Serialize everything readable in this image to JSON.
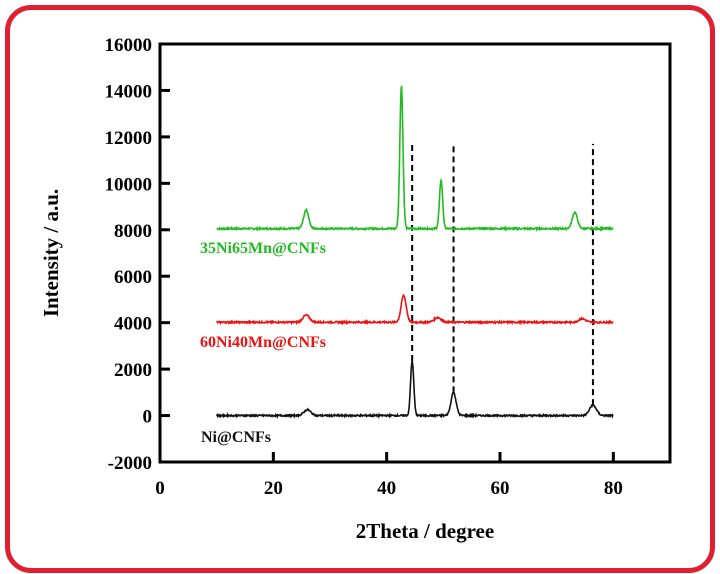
{
  "frame_color": "#e02030",
  "chart_data": {
    "type": "line",
    "title": "",
    "xlabel": "2Theta / degree",
    "ylabel": "Intensity / a.u.",
    "xlim": [
      0,
      90
    ],
    "ylim": [
      -2000,
      16000
    ],
    "xticks": [
      0,
      20,
      40,
      60,
      80
    ],
    "yticks": [
      -2000,
      0,
      2000,
      4000,
      6000,
      8000,
      10000,
      12000,
      14000,
      16000
    ],
    "grid": false,
    "reference_lines_x": [
      44.5,
      51.8,
      76.4
    ],
    "series": [
      {
        "name": "35Ni65Mn@CNFs",
        "color": "#22bb22",
        "baseline": 8050,
        "x_range": [
          10,
          80
        ],
        "peaks": [
          {
            "x": 25.8,
            "height": 800
          },
          {
            "x": 42.6,
            "height": 6150
          },
          {
            "x": 49.6,
            "height": 2100
          },
          {
            "x": 73.2,
            "height": 700
          }
        ]
      },
      {
        "name": "60Ni40Mn@CNFs",
        "color": "#ee1111",
        "baseline": 4020,
        "x_range": [
          10,
          80
        ],
        "peaks": [
          {
            "x": 25.8,
            "height": 300
          },
          {
            "x": 43.0,
            "height": 1150
          },
          {
            "x": 49.0,
            "height": 200
          },
          {
            "x": 74.5,
            "height": 150
          }
        ]
      },
      {
        "name": "Ni@CNFs",
        "color": "#111111",
        "baseline": 0,
        "x_range": [
          10,
          80
        ],
        "peaks": [
          {
            "x": 26.0,
            "height": 250
          },
          {
            "x": 44.5,
            "height": 2350
          },
          {
            "x": 51.8,
            "height": 1000
          },
          {
            "x": 76.4,
            "height": 450
          }
        ]
      }
    ]
  }
}
